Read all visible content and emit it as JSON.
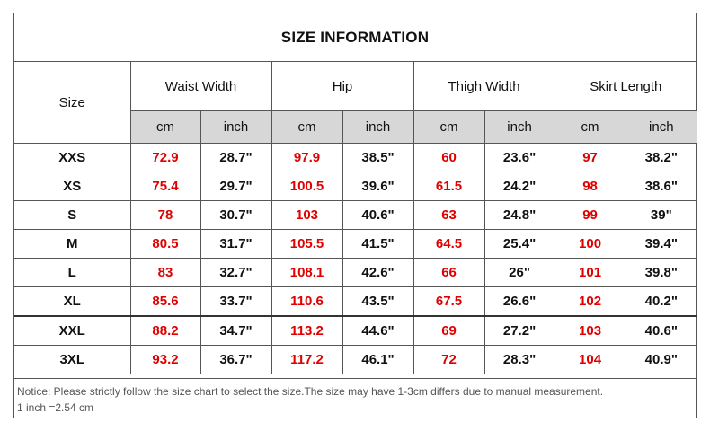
{
  "title": "SIZE INFORMATION",
  "size_header": "Size",
  "groups": [
    "Waist Width",
    "Hip",
    "Thigh Width",
    "Skirt Length"
  ],
  "unit_cm": "cm",
  "unit_inch": "inch",
  "rows": [
    {
      "size": "XXS",
      "values": [
        "72.9",
        "28.7\"",
        "97.9",
        "38.5\"",
        "60",
        "23.6\"",
        "97",
        "38.2\""
      ]
    },
    {
      "size": "XS",
      "values": [
        "75.4",
        "29.7\"",
        "100.5",
        "39.6\"",
        "61.5",
        "24.2\"",
        "98",
        "38.6\""
      ]
    },
    {
      "size": "S",
      "values": [
        "78",
        "30.7\"",
        "103",
        "40.6\"",
        "63",
        "24.8\"",
        "99",
        "39\""
      ]
    },
    {
      "size": "M",
      "values": [
        "80.5",
        "31.7\"",
        "105.5",
        "41.5\"",
        "64.5",
        "25.4\"",
        "100",
        "39.4\""
      ]
    },
    {
      "size": "L",
      "values": [
        "83",
        "32.7\"",
        "108.1",
        "42.6\"",
        "66",
        "26\"",
        "101",
        "39.8\""
      ]
    },
    {
      "size": "XL",
      "values": [
        "85.6",
        "33.7\"",
        "110.6",
        "43.5\"",
        "67.5",
        "26.6\"",
        "102",
        "40.2\""
      ]
    },
    {
      "size": "XXL",
      "values": [
        "88.2",
        "34.7\"",
        "113.2",
        "44.6\"",
        "69",
        "27.2\"",
        "103",
        "40.6\""
      ]
    },
    {
      "size": "3XL",
      "values": [
        "93.2",
        "36.7\"",
        "117.2",
        "46.1\"",
        "72",
        "28.3\"",
        "104",
        "40.9\""
      ]
    }
  ],
  "notice_line1": "Notice: Please strictly follow the size chart to select the size.The size may have 1-3cm differs due to manual measurement.",
  "notice_line2": "1 inch =2.54 cm",
  "colors": {
    "cm_value": "#e00000",
    "unit_row_bg": "#d7d7d7",
    "border": "#555555"
  }
}
